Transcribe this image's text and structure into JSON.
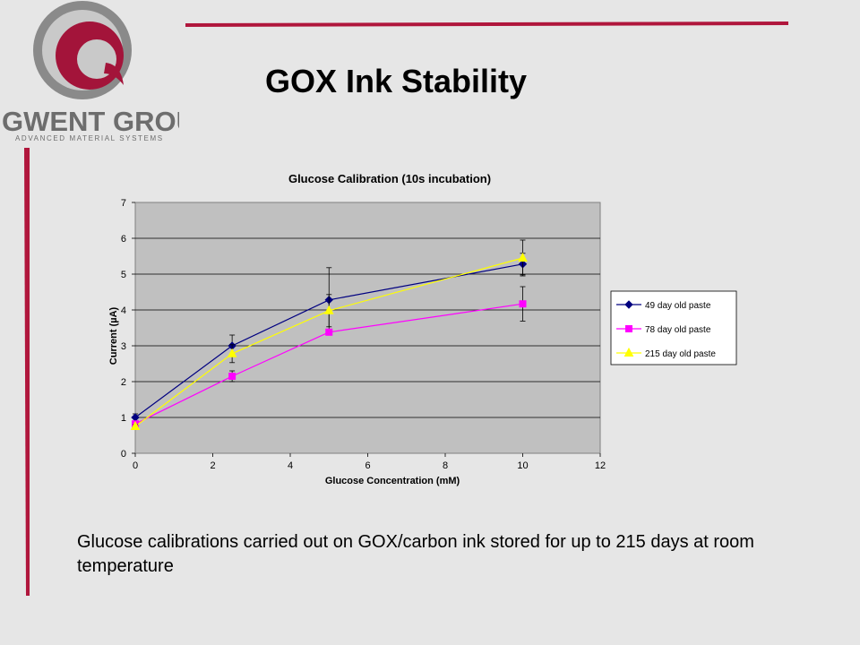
{
  "slide": {
    "title": "GOX Ink Stability",
    "caption": "Glucose calibrations carried out on GOX/carbon ink stored for up to 215 days at room temperature",
    "accent_color": "#b0163c"
  },
  "logo": {
    "name": "GWENT GROUP",
    "tagline": "ADVANCED MATERIAL SYSTEMS",
    "colors": {
      "maroon": "#9b1b3a",
      "grey": "#7a7a7a"
    }
  },
  "chart_data": {
    "type": "line",
    "title": "Glucose Calibration (10s incubation)",
    "xlabel": "Glucose Concentration (mM)",
    "ylabel": "Current (µA)",
    "xlim": [
      0,
      12
    ],
    "ylim": [
      0,
      7
    ],
    "xticks": [
      0,
      2,
      4,
      6,
      8,
      10,
      12
    ],
    "yticks": [
      0,
      1,
      2,
      3,
      4,
      5,
      6,
      7
    ],
    "grid": "horizontal",
    "plot_background": "#c0c0c0",
    "legend_position": "right",
    "series": [
      {
        "name": "49 day old paste",
        "color": "#000080",
        "marker": "diamond",
        "x": [
          0,
          2.5,
          5,
          10
        ],
        "y": [
          1.0,
          3.0,
          4.28,
          5.28
        ],
        "error": [
          0.1,
          0.3,
          0.9,
          0.3
        ]
      },
      {
        "name": "78 day old paste",
        "color": "#ff00ff",
        "marker": "square",
        "x": [
          0,
          2.5,
          5,
          10
        ],
        "y": [
          0.82,
          2.15,
          3.38,
          4.17
        ],
        "error": [
          0.05,
          0.15,
          0.08,
          0.48
        ]
      },
      {
        "name": "215 day old paste",
        "color": "#ffff00",
        "marker": "triangle",
        "x": [
          0,
          2.5,
          5,
          10
        ],
        "y": [
          0.75,
          2.78,
          3.98,
          5.45
        ],
        "error": [
          0.05,
          0.25,
          0.45,
          0.5
        ]
      }
    ]
  }
}
